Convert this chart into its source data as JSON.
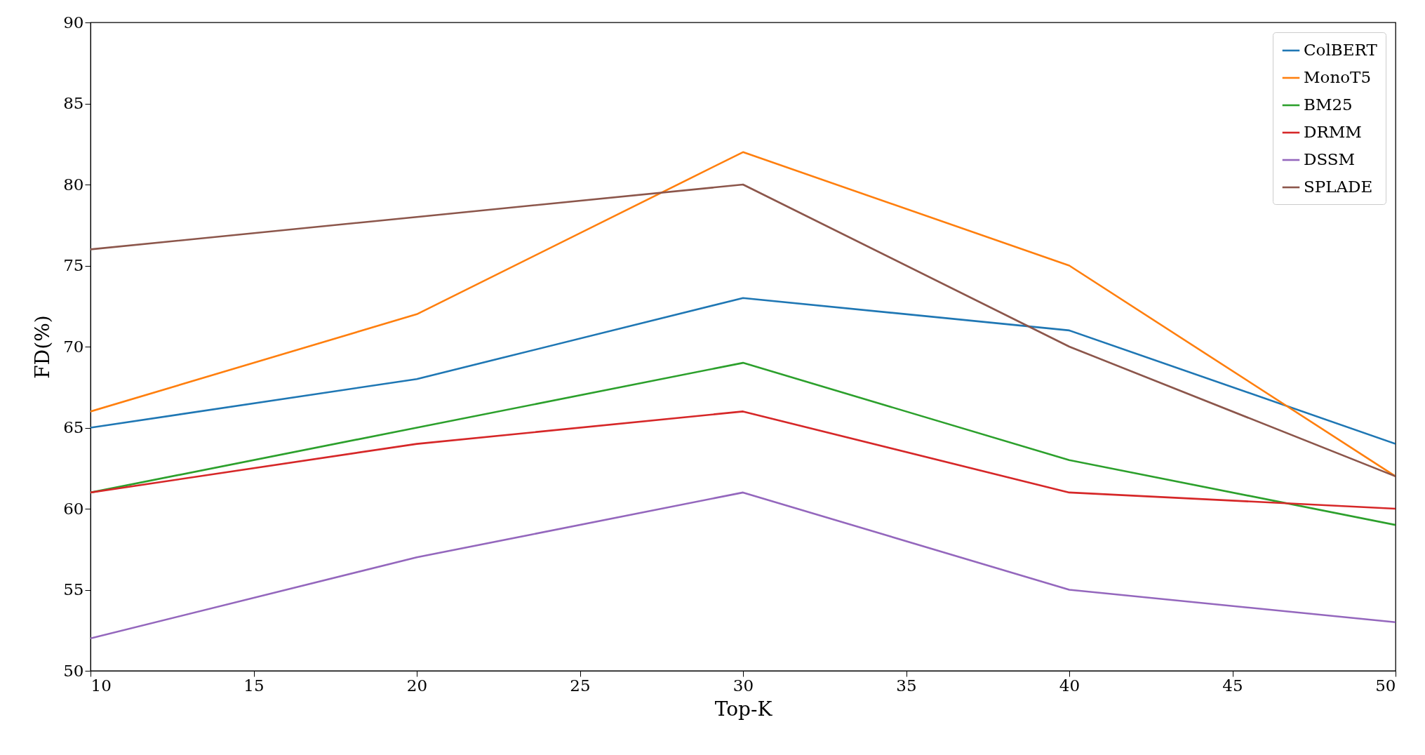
{
  "chart_data": {
    "type": "line",
    "xlabel": "Top-K",
    "ylabel": "FD(%)",
    "x": [
      10,
      20,
      30,
      40,
      50
    ],
    "xlim": [
      10,
      50
    ],
    "xticks": [
      10,
      15,
      20,
      25,
      30,
      35,
      40,
      45,
      50
    ],
    "ylim": [
      50,
      90
    ],
    "yticks": [
      50,
      55,
      60,
      65,
      70,
      75,
      80,
      85,
      90
    ],
    "grid": false,
    "legend": "top right",
    "marker": "none",
    "line_style": "solid",
    "series": [
      {
        "name": "ColBERT",
        "color": "#1f77b4",
        "values": [
          65,
          68,
          73,
          71,
          64
        ]
      },
      {
        "name": "MonoT5",
        "color": "#ff7f0e",
        "values": [
          66,
          72,
          82,
          75,
          62
        ]
      },
      {
        "name": "BM25",
        "color": "#2ca02c",
        "values": [
          61,
          65,
          69,
          63,
          59
        ]
      },
      {
        "name": "DRMM",
        "color": "#d62728",
        "values": [
          61,
          64,
          66,
          61,
          60
        ]
      },
      {
        "name": "DSSM",
        "color": "#9467bd",
        "values": [
          52,
          57,
          61,
          55,
          53
        ]
      },
      {
        "name": "SPLADE",
        "color": "#8c564b",
        "values": [
          76,
          78,
          80,
          70,
          62
        ]
      }
    ]
  }
}
